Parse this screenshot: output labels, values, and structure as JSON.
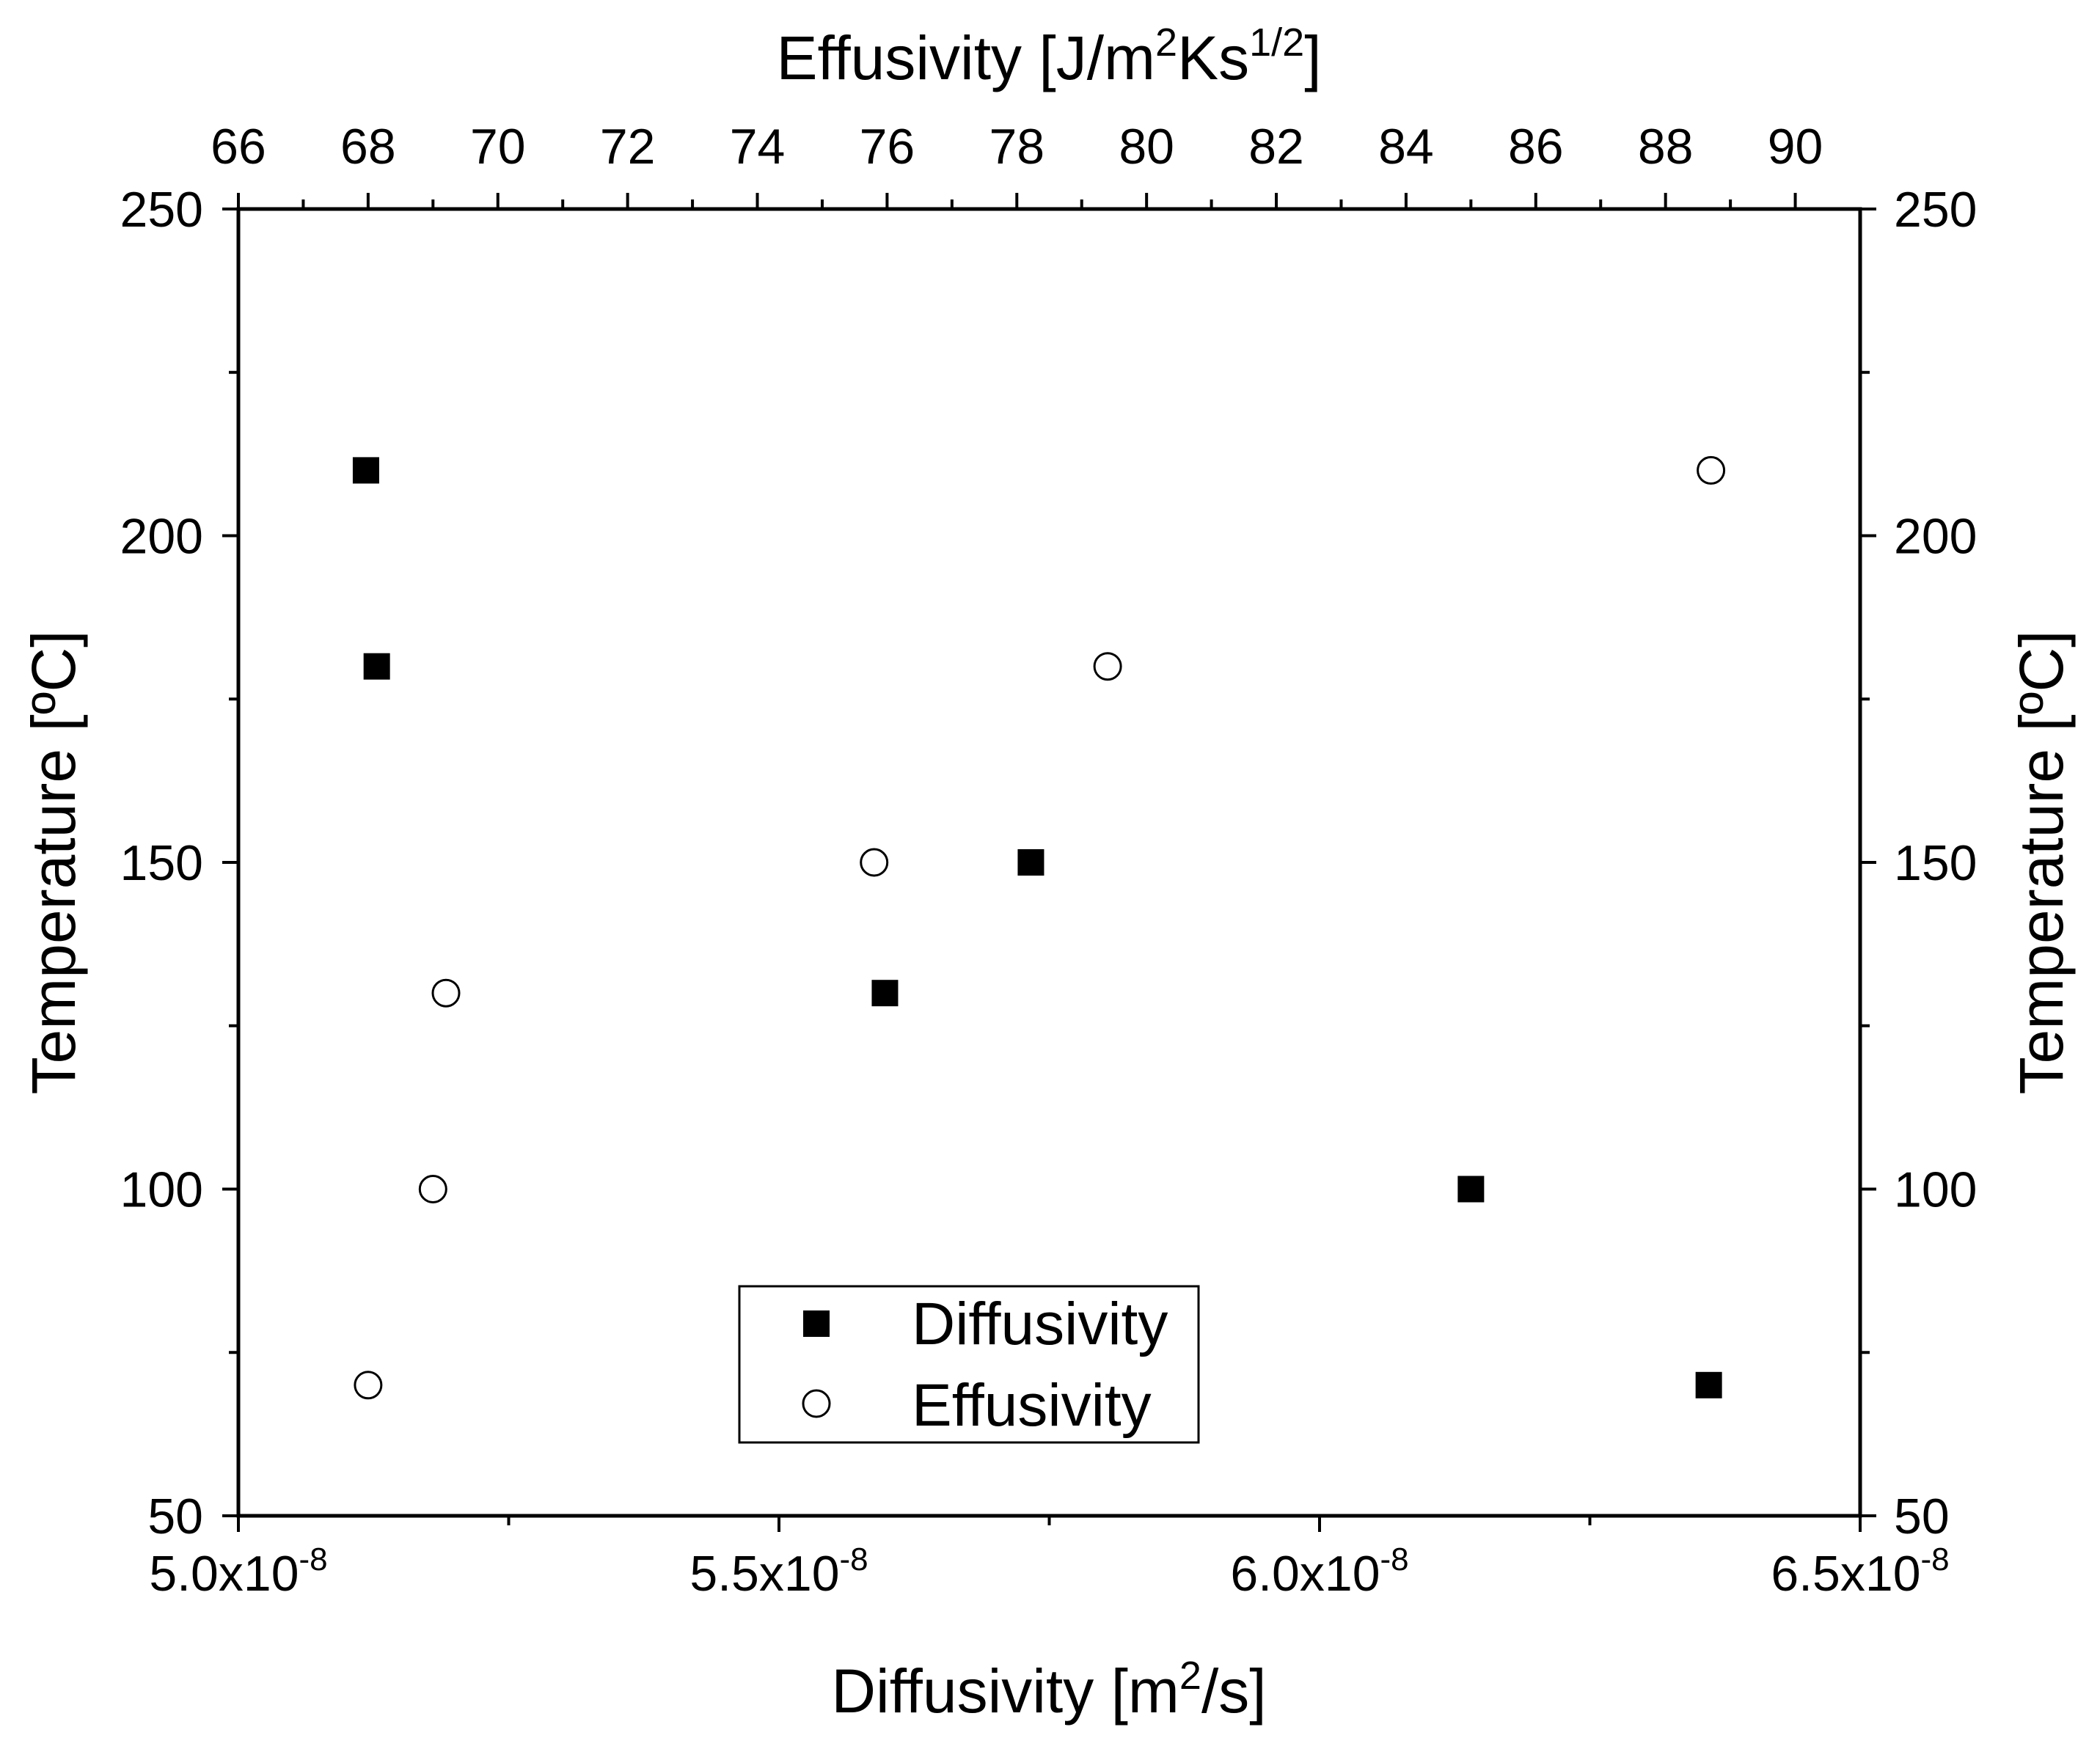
{
  "chart_data": {
    "type": "scatter",
    "title": "",
    "x_bottom": {
      "label": {
        "prefix": "Diffusivity [m",
        "sup": "2",
        "suffix": "/s]"
      },
      "range": [
        5e-08,
        6.5e-08
      ],
      "ticks": [
        {
          "value": 5e-08,
          "mantissa": "5.0x10",
          "exponent": "-8"
        },
        {
          "value": 5.5e-08,
          "mantissa": "5.5x10",
          "exponent": "-8"
        },
        {
          "value": 6e-08,
          "mantissa": "6.0x10",
          "exponent": "-8"
        },
        {
          "value": 6.5e-08,
          "mantissa": "6.5x10",
          "exponent": "-8"
        }
      ],
      "minor_ticks": [
        5.25e-08,
        5.75e-08,
        6.25e-08
      ]
    },
    "x_top": {
      "label": {
        "prefix": "Effusivity [J/m",
        "sup1": "2",
        "mid": "Ks",
        "sup2": "1/2",
        "suffix": "]"
      },
      "range": [
        66,
        91
      ],
      "ticks": [
        "66",
        "68",
        "70",
        "72",
        "74",
        "76",
        "78",
        "80",
        "82",
        "84",
        "86",
        "88",
        "90"
      ],
      "minor_ticks": [
        67,
        69,
        71,
        73,
        75,
        77,
        79,
        81,
        83,
        85,
        87,
        89
      ]
    },
    "y_left": {
      "label": "Temperature [ºC]",
      "range": [
        50,
        250
      ],
      "ticks": [
        "50",
        "100",
        "150",
        "200",
        "250"
      ],
      "minor_ticks": [
        75,
        125,
        175,
        225
      ]
    },
    "y_right": {
      "label": "Temperature [ºC]",
      "range": [
        50,
        250
      ],
      "ticks": [
        "50",
        "100",
        "150",
        "200",
        "250"
      ],
      "minor_ticks": [
        75,
        125,
        175,
        225
      ]
    },
    "series": [
      {
        "name": "Diffusivity",
        "marker": "filled-square",
        "axis": "bottom",
        "points": [
          {
            "x": 5.118e-08,
            "y": 210
          },
          {
            "x": 5.128e-08,
            "y": 180
          },
          {
            "x": 5.733e-08,
            "y": 150
          },
          {
            "x": 5.598e-08,
            "y": 130
          },
          {
            "x": 6.14e-08,
            "y": 100
          },
          {
            "x": 6.36e-08,
            "y": 70
          }
        ]
      },
      {
        "name": "Effusivity",
        "marker": "open-circle",
        "axis": "top",
        "points": [
          {
            "x": 88.7,
            "y": 210
          },
          {
            "x": 79.4,
            "y": 180
          },
          {
            "x": 75.8,
            "y": 150
          },
          {
            "x": 69.2,
            "y": 130
          },
          {
            "x": 69.0,
            "y": 100
          },
          {
            "x": 68.0,
            "y": 70
          }
        ]
      }
    ],
    "legend": {
      "position": "bottom-center",
      "entries": [
        "Diffusivity",
        "Effusivity"
      ]
    },
    "colors": {
      "axes": "#000000",
      "marker": "#000000",
      "background": "#ffffff"
    }
  }
}
